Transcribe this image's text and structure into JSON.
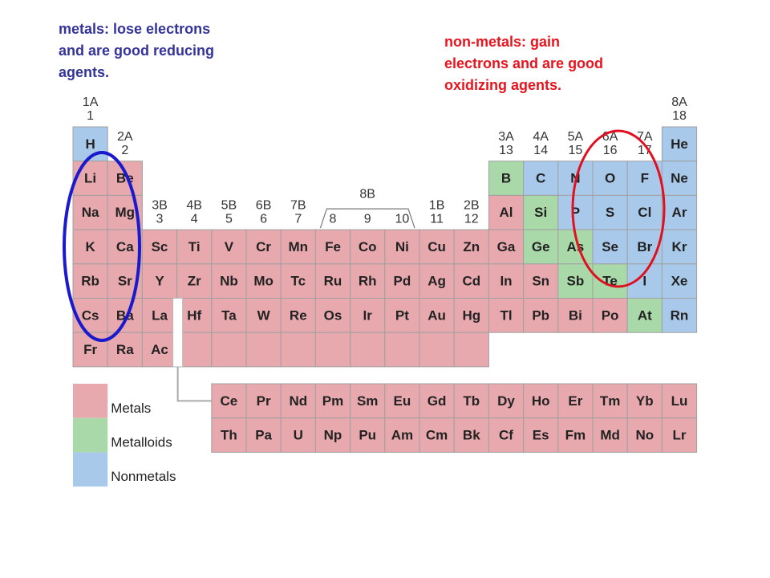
{
  "annotations": [
    {
      "lines": [
        "metals: lose electrons",
        "and are good reducing",
        "agents."
      ],
      "color": "#33339a"
    },
    {
      "lines": [
        "non-metals: gain",
        "electrons and are good",
        "oxidizing agents."
      ],
      "color": "#e8141e"
    }
  ],
  "groups": [
    {
      "top": "1A",
      "bottom": "1"
    },
    {
      "top": "2A",
      "bottom": "2"
    },
    {
      "top": "3B",
      "bottom": "3"
    },
    {
      "top": "4B",
      "bottom": "4"
    },
    {
      "top": "5B",
      "bottom": "5"
    },
    {
      "top": "6B",
      "bottom": "6"
    },
    {
      "top": "7B",
      "bottom": "7"
    },
    {
      "top": null,
      "bottom": "8"
    },
    {
      "top": "8B",
      "bottom": "9"
    },
    {
      "top": null,
      "bottom": "10"
    },
    {
      "top": "1B",
      "bottom": "11"
    },
    {
      "top": "2B",
      "bottom": "12"
    },
    {
      "top": "3A",
      "bottom": "13"
    },
    {
      "top": "4A",
      "bottom": "14"
    },
    {
      "top": "5A",
      "bottom": "15"
    },
    {
      "top": "6A",
      "bottom": "16"
    },
    {
      "top": "7A",
      "bottom": "17"
    },
    {
      "top": "8A",
      "bottom": "18"
    }
  ],
  "table": {
    "rows": [
      [
        {
          "symbol": "H",
          "color": "#a9c9ea"
        },
        null,
        null,
        null,
        null,
        null,
        null,
        null,
        null,
        null,
        null,
        null,
        null,
        null,
        null,
        null,
        null,
        {
          "symbol": "He",
          "color": "#a9c9ea"
        }
      ],
      [
        {
          "symbol": "Li",
          "color": "#e8a9ae"
        },
        {
          "symbol": "Be",
          "color": "#e8a9ae"
        },
        null,
        null,
        null,
        null,
        null,
        null,
        null,
        null,
        null,
        null,
        {
          "symbol": "B",
          "color": "#a9d9a8"
        },
        {
          "symbol": "C",
          "color": "#a9c9ea"
        },
        {
          "symbol": "N",
          "color": "#a9c9ea"
        },
        {
          "symbol": "O",
          "color": "#a9c9ea"
        },
        {
          "symbol": "F",
          "color": "#a9c9ea"
        },
        {
          "symbol": "Ne",
          "color": "#a9c9ea"
        }
      ],
      [
        {
          "symbol": "Na",
          "color": "#e8a9ae"
        },
        {
          "symbol": "Mg",
          "color": "#e8a9ae"
        },
        null,
        null,
        null,
        null,
        null,
        null,
        null,
        null,
        null,
        null,
        {
          "symbol": "Al",
          "color": "#e8a9ae"
        },
        {
          "symbol": "Si",
          "color": "#a9d9a8"
        },
        {
          "symbol": "P",
          "color": "#a9c9ea"
        },
        {
          "symbol": "S",
          "color": "#a9c9ea"
        },
        {
          "symbol": "Cl",
          "color": "#a9c9ea"
        },
        {
          "symbol": "Ar",
          "color": "#a9c9ea"
        }
      ],
      [
        {
          "symbol": "K",
          "color": "#e8a9ae"
        },
        {
          "symbol": "Ca",
          "color": "#e8a9ae"
        },
        {
          "symbol": "Sc",
          "color": "#e8a9ae"
        },
        {
          "symbol": "Ti",
          "color": "#e8a9ae"
        },
        {
          "symbol": "V",
          "color": "#e8a9ae"
        },
        {
          "symbol": "Cr",
          "color": "#e8a9ae"
        },
        {
          "symbol": "Mn",
          "color": "#e8a9ae"
        },
        {
          "symbol": "Fe",
          "color": "#e8a9ae"
        },
        {
          "symbol": "Co",
          "color": "#e8a9ae"
        },
        {
          "symbol": "Ni",
          "color": "#e8a9ae"
        },
        {
          "symbol": "Cu",
          "color": "#e8a9ae"
        },
        {
          "symbol": "Zn",
          "color": "#e8a9ae"
        },
        {
          "symbol": "Ga",
          "color": "#e8a9ae"
        },
        {
          "symbol": "Ge",
          "color": "#a9d9a8"
        },
        {
          "symbol": "As",
          "color": "#a9d9a8"
        },
        {
          "symbol": "Se",
          "color": "#a9c9ea"
        },
        {
          "symbol": "Br",
          "color": "#a9c9ea"
        },
        {
          "symbol": "Kr",
          "color": "#a9c9ea"
        }
      ],
      [
        {
          "symbol": "Rb",
          "color": "#e8a9ae"
        },
        {
          "symbol": "Sr",
          "color": "#e8a9ae"
        },
        {
          "symbol": "Y",
          "color": "#e8a9ae"
        },
        {
          "symbol": "Zr",
          "color": "#e8a9ae"
        },
        {
          "symbol": "Nb",
          "color": "#e8a9ae"
        },
        {
          "symbol": "Mo",
          "color": "#e8a9ae"
        },
        {
          "symbol": "Tc",
          "color": "#e8a9ae"
        },
        {
          "symbol": "Ru",
          "color": "#e8a9ae"
        },
        {
          "symbol": "Rh",
          "color": "#e8a9ae"
        },
        {
          "symbol": "Pd",
          "color": "#e8a9ae"
        },
        {
          "symbol": "Ag",
          "color": "#e8a9ae"
        },
        {
          "symbol": "Cd",
          "color": "#e8a9ae"
        },
        {
          "symbol": "In",
          "color": "#e8a9ae"
        },
        {
          "symbol": "Sn",
          "color": "#e8a9ae"
        },
        {
          "symbol": "Sb",
          "color": "#a9d9a8"
        },
        {
          "symbol": "Te",
          "color": "#a9d9a8"
        },
        {
          "symbol": "I",
          "color": "#a9c9ea"
        },
        {
          "symbol": "Xe",
          "color": "#a9c9ea"
        }
      ],
      [
        {
          "symbol": "Cs",
          "color": "#e8a9ae"
        },
        {
          "symbol": "Ba",
          "color": "#e8a9ae"
        },
        {
          "symbol": "La",
          "color": "#e8a9ae"
        },
        {
          "symbol": "Hf",
          "color": "#e8a9ae"
        },
        {
          "symbol": "Ta",
          "color": "#e8a9ae"
        },
        {
          "symbol": "W",
          "color": "#e8a9ae"
        },
        {
          "symbol": "Re",
          "color": "#e8a9ae"
        },
        {
          "symbol": "Os",
          "color": "#e8a9ae"
        },
        {
          "symbol": "Ir",
          "color": "#e8a9ae"
        },
        {
          "symbol": "Pt",
          "color": "#e8a9ae"
        },
        {
          "symbol": "Au",
          "color": "#e8a9ae"
        },
        {
          "symbol": "Hg",
          "color": "#e8a9ae"
        },
        {
          "symbol": "Tl",
          "color": "#e8a9ae"
        },
        {
          "symbol": "Pb",
          "color": "#e8a9ae"
        },
        {
          "symbol": "Bi",
          "color": "#e8a9ae"
        },
        {
          "symbol": "Po",
          "color": "#e8a9ae"
        },
        {
          "symbol": "At",
          "color": "#a9d9a8"
        },
        {
          "symbol": "Rn",
          "color": "#a9c9ea"
        }
      ],
      [
        {
          "symbol": "Fr",
          "color": "#e8a9ae"
        },
        {
          "symbol": "Ra",
          "color": "#e8a9ae"
        },
        {
          "symbol": "Ac",
          "color": "#e8a9ae"
        },
        {
          "symbol": null,
          "color": "#e8a9ae"
        },
        {
          "symbol": null,
          "color": "#e8a9ae"
        },
        {
          "symbol": null,
          "color": "#e8a9ae"
        },
        {
          "symbol": null,
          "color": "#e8a9ae"
        },
        {
          "symbol": null,
          "color": "#e8a9ae"
        },
        {
          "symbol": null,
          "color": "#e8a9ae"
        },
        {
          "symbol": null,
          "color": "#e8a9ae"
        },
        {
          "symbol": null,
          "color": "#e8a9ae"
        },
        {
          "symbol": null,
          "color": "#e8a9ae"
        },
        null,
        null,
        null,
        null,
        null,
        null
      ]
    ]
  },
  "f_block": {
    "color": "#e8a9ae",
    "rows": [
      [
        "Ce",
        "Pr",
        "Nd",
        "Pm",
        "Sm",
        "Eu",
        "Gd",
        "Tb",
        "Dy",
        "Ho",
        "Er",
        "Tm",
        "Yb",
        "Lu"
      ],
      [
        "Th",
        "Pa",
        "U",
        "Np",
        "Pu",
        "Am",
        "Cm",
        "Bk",
        "Cf",
        "Es",
        "Fm",
        "Md",
        "No",
        "Lr"
      ]
    ]
  },
  "legend": [
    {
      "label": "Metals",
      "color": "#e8a9ae"
    },
    {
      "label": "Metalloids",
      "color": "#a9d9a8"
    },
    {
      "label": "Nonmetals",
      "color": "#a9c9ea"
    }
  ]
}
